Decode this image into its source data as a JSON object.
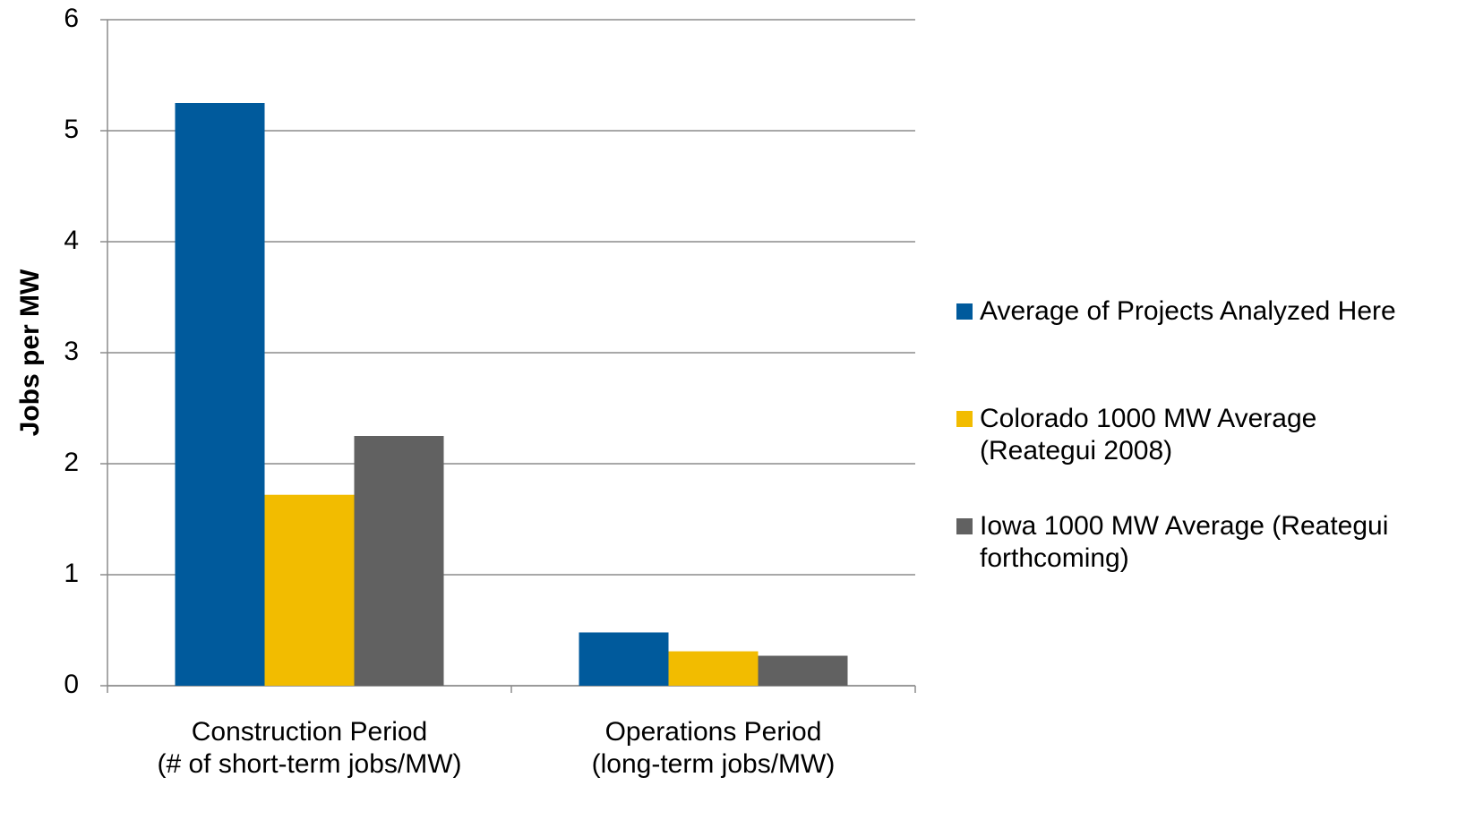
{
  "chart_data": {
    "type": "bar",
    "y_label": "Jobs per MW",
    "categories": [
      "Construction Period\n(# of short-term jobs/MW)",
      "Operations Period\n(long-term jobs/MW)"
    ],
    "series": [
      {
        "name": "Average of Projects Analyzed Here",
        "color": "#005a9c",
        "values": [
          5.25,
          0.48
        ]
      },
      {
        "name": "Colorado 1000 MW Average (Reategui 2008)",
        "color": "#f2bc00",
        "values": [
          1.72,
          0.31
        ]
      },
      {
        "name": "Iowa 1000 MW Average (Reategui forthcoming)",
        "color": "#616161",
        "values": [
          2.25,
          0.27
        ]
      }
    ],
    "ylim": [
      0,
      6
    ],
    "yticks": [
      0,
      1,
      2,
      3,
      4,
      5,
      6
    ],
    "grid": true,
    "legend": "right"
  }
}
